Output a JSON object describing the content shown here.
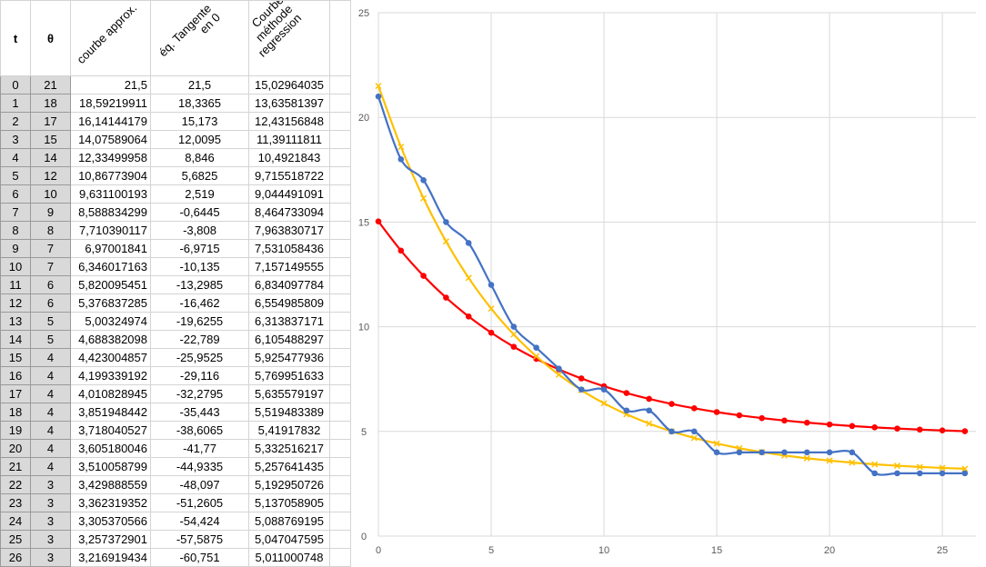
{
  "headers": {
    "t": "t",
    "theta": "θ",
    "approx": "courbe approx.",
    "tangent": "éq. Tangente\n      en 0",
    "regression": "Courbe\n   méthode\n      regression"
  },
  "rows": [
    [
      "0",
      "21",
      "21,5",
      "21,5",
      "15,02964035"
    ],
    [
      "1",
      "18",
      "18,59219911",
      "18,3365",
      "13,63581397"
    ],
    [
      "2",
      "17",
      "16,14144179",
      "15,173",
      "12,43156848"
    ],
    [
      "3",
      "15",
      "14,07589064",
      "12,0095",
      "11,39111811"
    ],
    [
      "4",
      "14",
      "12,33499958",
      "8,846",
      "10,4921843"
    ],
    [
      "5",
      "12",
      "10,86773904",
      "5,6825",
      "9,715518722"
    ],
    [
      "6",
      "10",
      "9,631100193",
      "2,519",
      "9,044491091"
    ],
    [
      "7",
      "9",
      "8,588834299",
      "-0,6445",
      "8,464733094"
    ],
    [
      "8",
      "8",
      "7,710390117",
      "-3,808",
      "7,963830717"
    ],
    [
      "9",
      "7",
      "6,97001841",
      "-6,9715",
      "7,531058436"
    ],
    [
      "10",
      "7",
      "6,346017163",
      "-10,135",
      "7,157149555"
    ],
    [
      "11",
      "6",
      "5,820095451",
      "-13,2985",
      "6,834097784"
    ],
    [
      "12",
      "6",
      "5,376837285",
      "-16,462",
      "6,554985809"
    ],
    [
      "13",
      "5",
      "5,00324974",
      "-19,6255",
      "6,313837171"
    ],
    [
      "14",
      "5",
      "4,688382098",
      "-22,789",
      "6,105488297"
    ],
    [
      "15",
      "4",
      "4,423004857",
      "-25,9525",
      "5,925477936"
    ],
    [
      "16",
      "4",
      "4,199339192",
      "-29,116",
      "5,769951633"
    ],
    [
      "17",
      "4",
      "4,010828945",
      "-32,2795",
      "5,635579197"
    ],
    [
      "18",
      "4",
      "3,851948442",
      "-35,443",
      "5,519483389"
    ],
    [
      "19",
      "4",
      "3,718040527",
      "-38,6065",
      "5,41917832"
    ],
    [
      "20",
      "4",
      "3,605180046",
      "-41,77",
      "5,332516217"
    ],
    [
      "21",
      "4",
      "3,510058799",
      "-44,9335",
      "5,257641435"
    ],
    [
      "22",
      "3",
      "3,429888559",
      "-48,097",
      "5,192950726"
    ],
    [
      "23",
      "3",
      "3,362319352",
      "-51,2605",
      "5,137058905"
    ],
    [
      "24",
      "3",
      "3,305370566",
      "-54,424",
      "5,088769195"
    ],
    [
      "25",
      "3",
      "3,257372901",
      "-57,5875",
      "5,047047595"
    ],
    [
      "26",
      "3",
      "3,216919434",
      "-60,751",
      "5,011000748"
    ]
  ],
  "chart_data": {
    "type": "line",
    "x": [
      0,
      1,
      2,
      3,
      4,
      5,
      6,
      7,
      8,
      9,
      10,
      11,
      12,
      13,
      14,
      15,
      16,
      17,
      18,
      19,
      20,
      21,
      22,
      23,
      24,
      25,
      26
    ],
    "series": [
      {
        "name": "θ",
        "color": "#4472c4",
        "marker": "circle",
        "values": [
          21,
          18,
          17,
          15,
          14,
          12,
          10,
          9,
          8,
          7,
          7,
          6,
          6,
          5,
          5,
          4,
          4,
          4,
          4,
          4,
          4,
          4,
          3,
          3,
          3,
          3,
          3
        ]
      },
      {
        "name": "courbe approx.",
        "color": "#ffc000",
        "marker": "x",
        "values": [
          21.5,
          18.592,
          16.141,
          14.076,
          12.335,
          10.868,
          9.631,
          8.589,
          7.71,
          6.97,
          6.346,
          5.82,
          5.377,
          5.003,
          4.688,
          4.423,
          4.199,
          4.011,
          3.852,
          3.718,
          3.605,
          3.51,
          3.43,
          3.362,
          3.305,
          3.257,
          3.217
        ]
      },
      {
        "name": "Courbe méthode regression",
        "color": "#ff0000",
        "marker": "circle",
        "values": [
          15.03,
          13.636,
          12.432,
          11.391,
          10.492,
          9.716,
          9.044,
          8.465,
          7.964,
          7.531,
          7.157,
          6.834,
          6.555,
          6.314,
          6.105,
          5.925,
          5.77,
          5.636,
          5.519,
          5.419,
          5.333,
          5.258,
          5.193,
          5.137,
          5.089,
          5.047,
          5.011
        ]
      }
    ],
    "xlim": [
      0,
      26.5
    ],
    "ylim": [
      0,
      25
    ],
    "xticks": [
      "0",
      "5",
      "10",
      "15",
      "20",
      "25"
    ],
    "yticks": [
      "0",
      "5",
      "10",
      "15",
      "20",
      "25"
    ],
    "grid": true
  }
}
